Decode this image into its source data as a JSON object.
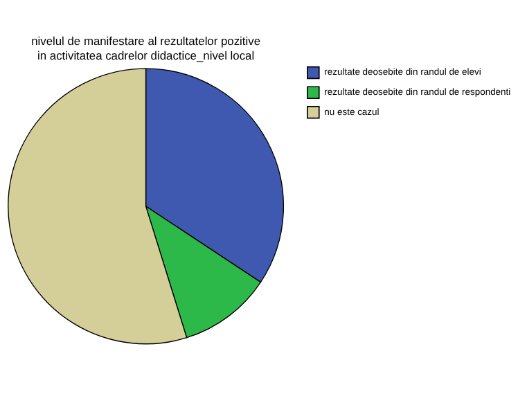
{
  "chart_data": {
    "type": "pie",
    "title": "nivelul de manifestare al rezultatelor pozitive in activitatea cadrelor didactice_nivel local",
    "categories": [
      "rezultate deosebite din randul de elevi",
      "rezultate deosebite din randul de respondenti",
      "nu este cazul"
    ],
    "values": [
      34.3,
      10.9,
      54.8
    ],
    "colors": [
      "#3f58b0",
      "#2db94a",
      "#d4cf98"
    ],
    "legend": "top right"
  }
}
